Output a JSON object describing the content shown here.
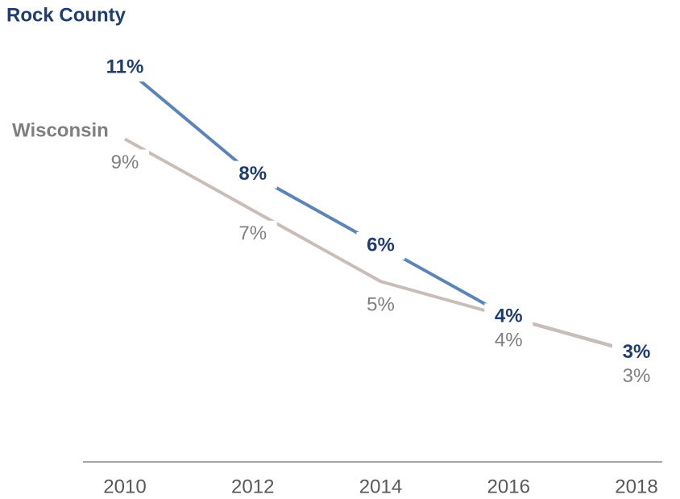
{
  "chart_data": {
    "type": "line",
    "x": [
      2010,
      2012,
      2014,
      2016,
      2018
    ],
    "xlim": [
      2010,
      2018
    ],
    "xticks": [
      2010,
      2012,
      2014,
      2016,
      2018
    ],
    "ylim": [
      0,
      12
    ],
    "series": [
      {
        "name": "Rock County",
        "color": "#5a85b6",
        "label_color": "#1f3d6e",
        "values": [
          11,
          8,
          6,
          4,
          3
        ],
        "value_labels": [
          "11%",
          "8%",
          "6%",
          "4%",
          "3%"
        ]
      },
      {
        "name": "Wisconsin",
        "color": "#c9bdb9",
        "label_color": "#7f7f7f",
        "values": [
          9,
          7,
          5,
          4,
          3
        ],
        "value_labels": [
          "9%",
          "7%",
          "5%",
          "4%",
          "3%"
        ]
      }
    ]
  }
}
